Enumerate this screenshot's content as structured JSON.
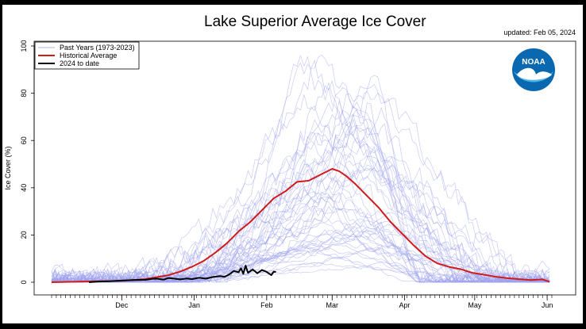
{
  "chart_data": {
    "type": "line",
    "title": "Lake Superior Average Ice Cover",
    "subtitle": "updated: Feb 05, 2024",
    "ylabel": "Ice Cover (%)",
    "xlabel": "",
    "ylim": [
      0,
      100
    ],
    "yticks": [
      0,
      20,
      40,
      60,
      80,
      100
    ],
    "x_tick_labels": [
      "Dec",
      "Jan",
      "Feb",
      "Mar",
      "Apr",
      "May",
      "Jun"
    ],
    "x_tick_days": [
      30,
      61,
      92,
      120,
      151,
      181,
      212
    ],
    "xlim": [
      0,
      214
    ],
    "grid": false,
    "legend": {
      "position": "top-left",
      "entries": [
        {
          "label": "Past Years (1973-2023)",
          "color": "#b3b3f0"
        },
        {
          "label": "Historical Average",
          "color": "#d11a1a"
        },
        {
          "label": "2024 to date",
          "color": "#000000"
        }
      ]
    },
    "x_units": "days since Nov 1",
    "series": [
      {
        "name": "Historical Average",
        "color": "#d11a1a",
        "x": [
          0,
          10,
          20,
          30,
          40,
          50,
          55,
          60,
          65,
          70,
          75,
          80,
          85,
          90,
          95,
          100,
          105,
          110,
          115,
          120,
          123,
          126,
          130,
          135,
          140,
          145,
          150,
          155,
          160,
          165,
          170,
          175,
          180,
          185,
          190,
          195,
          200,
          205,
          210,
          213
        ],
        "y": [
          0,
          0.2,
          0.4,
          0.6,
          1.3,
          3.0,
          4.5,
          6.5,
          9.0,
          12.5,
          16.5,
          21.5,
          25.5,
          30.5,
          35.5,
          38.5,
          42.5,
          43.0,
          45.5,
          48.0,
          47.0,
          45.0,
          41.5,
          36.5,
          31.5,
          25.5,
          20.5,
          15.5,
          11.0,
          8.0,
          6.5,
          5.5,
          4.0,
          3.2,
          2.3,
          1.7,
          1.3,
          0.9,
          1.2,
          0.2
        ]
      },
      {
        "name": "2024 to date",
        "color": "#000000",
        "x": [
          16,
          20,
          25,
          30,
          35,
          40,
          43,
          45,
          48,
          50,
          55,
          58,
          60,
          63,
          66,
          69,
          72,
          74,
          76,
          78,
          80,
          81,
          82,
          83,
          84,
          86,
          88,
          90,
          92,
          94,
          95,
          96
        ],
        "y": [
          0,
          0.3,
          0.4,
          0.7,
          0.9,
          1.0,
          1.4,
          1.5,
          1.1,
          1.8,
          1.2,
          1.6,
          1.3,
          1.9,
          1.5,
          2.2,
          2.6,
          2.3,
          3.3,
          4.8,
          4.2,
          5.9,
          3.6,
          7.0,
          4.0,
          5.4,
          3.8,
          5.2,
          4.4,
          3.0,
          4.5,
          4.3
        ]
      }
    ]
  },
  "logo": {
    "text": "NOAA",
    "color": "#0a68b0"
  }
}
